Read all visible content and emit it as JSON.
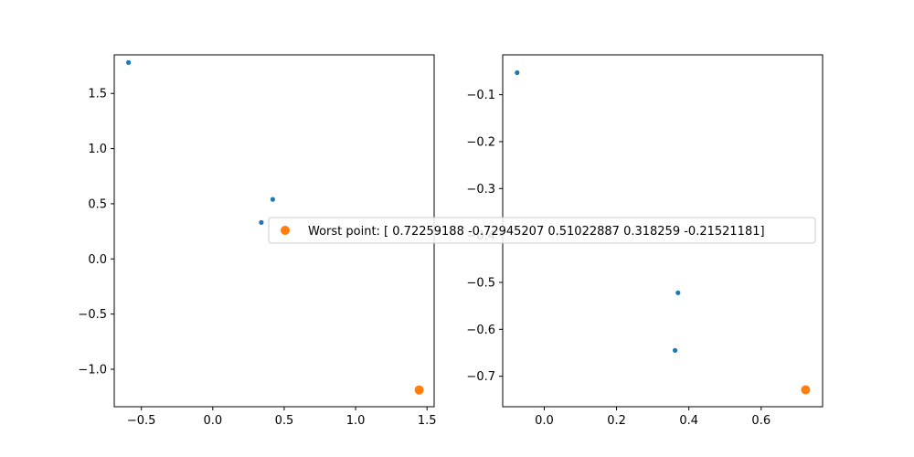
{
  "colors": {
    "series": "#1f77b4",
    "worst": "#ff7f0e"
  },
  "chart_data": [
    {
      "type": "scatter",
      "xlim": [
        -0.69,
        1.55
      ],
      "ylim": [
        -1.34,
        1.85
      ],
      "xticks": [
        -0.5,
        0.0,
        0.5,
        1.0,
        1.5
      ],
      "xtick_labels": [
        "−0.5",
        "0.0",
        "0.5",
        "1.0",
        "1.5"
      ],
      "yticks": [
        -1.0,
        -0.5,
        0.0,
        0.5,
        1.0,
        1.5
      ],
      "ytick_labels": [
        "−1.0",
        "−0.5",
        "0.0",
        "0.5",
        "1.0",
        "1.5"
      ],
      "grid": false,
      "series": [
        {
          "role": "points",
          "x": [
            -0.59,
            0.42,
            0.34
          ],
          "y": [
            1.78,
            0.54,
            0.33
          ]
        },
        {
          "role": "worst",
          "x": [
            1.445
          ],
          "y": [
            -1.188
          ]
        }
      ],
      "legend": {
        "placement": "center-left",
        "entries": [
          "Worst point: [ 0.72259188 -0.72945207  0.51022887  0.318259   -0.21521181]"
        ]
      }
    },
    {
      "type": "scatter",
      "xlim": [
        -0.115,
        0.77
      ],
      "ylim": [
        -0.765,
        -0.015
      ],
      "xticks": [
        0.0,
        0.2,
        0.4,
        0.6
      ],
      "xtick_labels": [
        "0.0",
        "0.2",
        "0.4",
        "0.6"
      ],
      "yticks": [
        -0.1,
        -0.2,
        -0.3,
        -0.4,
        -0.5,
        -0.6,
        -0.7
      ],
      "ytick_labels": [
        "−0.1",
        "−0.2",
        "−0.3",
        "−0.4",
        "−0.5",
        "−0.6",
        "−0.7"
      ],
      "grid": false,
      "series": [
        {
          "role": "points",
          "x": [
            -0.075,
            0.37,
            0.362
          ],
          "y": [
            -0.053,
            -0.522,
            -0.645
          ]
        },
        {
          "role": "worst",
          "x": [
            0.723
          ],
          "y": [
            -0.729
          ]
        }
      ]
    }
  ]
}
